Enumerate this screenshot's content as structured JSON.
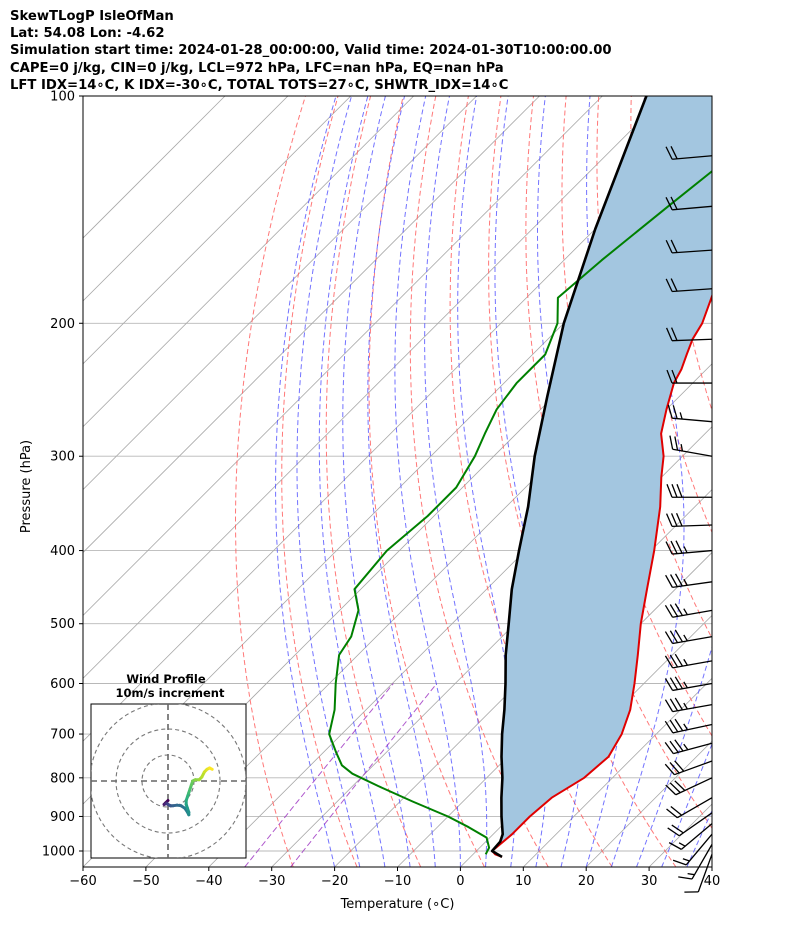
{
  "header": {
    "lines": [
      "SkewTLogP IsleOfMan",
      "Lat: 54.08   Lon: -4.62",
      "Simulation start time: 2024-01-28_00:00:00, Valid time: 2024-01-30T10:00:00.00",
      "CAPE=0 j/kg, CIN=0 j/kg, LCL=972 hPa, LFC=nan hPa, EQ=nan hPa",
      "LFT IDX=14∘C, K IDX=-30∘C, TOTAL TOTS=27∘C, SHWTR_IDX=14∘C"
    ]
  },
  "chart_data": {
    "type": "line",
    "xlabel": "Temperature (∘C)",
    "ylabel": "Pressure (hPa)",
    "xlim": [
      -60,
      40
    ],
    "ylim": [
      1050,
      100
    ],
    "y_scale": "log",
    "x_ticks": [
      -60,
      -50,
      -40,
      -30,
      -20,
      -10,
      0,
      10,
      20,
      30,
      40
    ],
    "x_tick_labels": [
      "−60",
      "−50",
      "−40",
      "−30",
      "−20",
      "−10",
      "0",
      "10",
      "20",
      "30",
      "40"
    ],
    "y_ticks": [
      1000,
      900,
      800,
      700,
      600,
      500,
      400,
      300,
      200,
      100
    ],
    "y_tick_labels": [
      "1000",
      "900",
      "800",
      "700",
      "600",
      "500",
      "400",
      "300",
      "200",
      "100"
    ],
    "grid": true,
    "skew_degrees": 45,
    "colors": {
      "temperature": "#e00000",
      "dewpoint": "#008000",
      "parcel": "#000000",
      "cape_fill": "#a3c6e0",
      "dry_adiabats": "#ff6060",
      "moist_adiabats": "#5a5aff",
      "mixing_ratio": "#9b30c0",
      "isotherms": "#a8a8a8"
    },
    "series": [
      {
        "role": "temperature",
        "pressure": [
          1018,
          1010,
          1000,
          950,
          900,
          850,
          800,
          750,
          700,
          650,
          600,
          550,
          500,
          450,
          400,
          350,
          320,
          300,
          280,
          260,
          240,
          230,
          220,
          210,
          200,
          180,
          160,
          140,
          120,
          110,
          100
        ],
        "values": [
          5,
          3.5,
          2.5,
          3,
          3,
          3.5,
          5.5,
          6,
          4.5,
          2,
          -1.5,
          -5.5,
          -10,
          -14.5,
          -19.5,
          -25.5,
          -30,
          -33,
          -37,
          -40,
          -43,
          -44,
          -45.5,
          -47,
          -48,
          -51.5,
          -55.5,
          -59,
          -63,
          -65.5,
          -68.5
        ]
      },
      {
        "role": "dewpoint",
        "pressure": [
          1010,
          990,
          960,
          930,
          900,
          860,
          820,
          790,
          770,
          740,
          700,
          650,
          600,
          550,
          520,
          480,
          450,
          400,
          360,
          330,
          300,
          280,
          260,
          240,
          220,
          200,
          185,
          165,
          140,
          120,
          100
        ],
        "values": [
          2,
          1.5,
          -0.5,
          -5,
          -10,
          -18,
          -26,
          -32,
          -35,
          -38,
          -42,
          -45,
          -49,
          -53,
          -54,
          -57,
          -61,
          -62,
          -61,
          -61,
          -63,
          -65,
          -67,
          -68,
          -68,
          -71,
          -75,
          -74,
          -72,
          -70,
          -67.5
        ]
      },
      {
        "role": "parcel",
        "pressure": [
          1018,
          1000,
          972,
          950,
          900,
          850,
          800,
          750,
          700,
          650,
          600,
          550,
          500,
          450,
          400,
          350,
          300,
          250,
          200,
          150,
          100
        ],
        "values": [
          5,
          2.5,
          2.3,
          1.5,
          -1.5,
          -4.5,
          -7.5,
          -11,
          -14.5,
          -18,
          -22,
          -26.5,
          -31,
          -36,
          -41,
          -46.5,
          -53.5,
          -61,
          -70,
          -80,
          -93
        ]
      }
    ],
    "wind_barbs": {
      "pressure": [
        1010,
        980,
        950,
        920,
        890,
        850,
        800,
        760,
        720,
        680,
        640,
        600,
        560,
        520,
        480,
        440,
        400,
        370,
        340,
        300,
        270,
        240,
        210,
        180,
        160,
        140,
        120
      ],
      "speed_kt": [
        12,
        14,
        13,
        15,
        18,
        22,
        28,
        30,
        33,
        35,
        35,
        35,
        35,
        35,
        35,
        35,
        35,
        30,
        30,
        25,
        25,
        22,
        22,
        22,
        22,
        22,
        22
      ],
      "direction_deg": [
        200,
        210,
        220,
        230,
        235,
        240,
        245,
        250,
        255,
        258,
        260,
        260,
        260,
        260,
        260,
        262,
        265,
        268,
        270,
        280,
        275,
        270,
        268,
        266,
        266,
        265,
        265
      ]
    },
    "hodograph": {
      "title": "Wind Profile",
      "subtitle": "10m/s increment",
      "rings_ms": [
        10,
        20,
        30
      ],
      "range_ms": 30,
      "u_ms": [
        0,
        -1,
        -1.5,
        -1,
        -0.5,
        -0.3,
        0,
        0.5,
        1,
        2,
        3.5,
        5,
        6.5,
        7.5,
        8,
        8,
        7.5,
        7,
        7,
        7.5,
        8,
        8.5,
        9,
        9.5,
        10.5,
        12,
        13,
        14,
        15,
        16,
        17
      ],
      "v_ms": [
        -7.5,
        -8.5,
        -9,
        -8.8,
        -8.5,
        -8.8,
        -9,
        -9.3,
        -9.5,
        -9.5,
        -9.3,
        -9.5,
        -10.5,
        -12,
        -13,
        -12,
        -10.5,
        -9,
        -7.5,
        -6,
        -4.5,
        -3,
        -1.5,
        0,
        0.5,
        0.5,
        1.5,
        3.5,
        4.5,
        5,
        4.5
      ]
    }
  }
}
